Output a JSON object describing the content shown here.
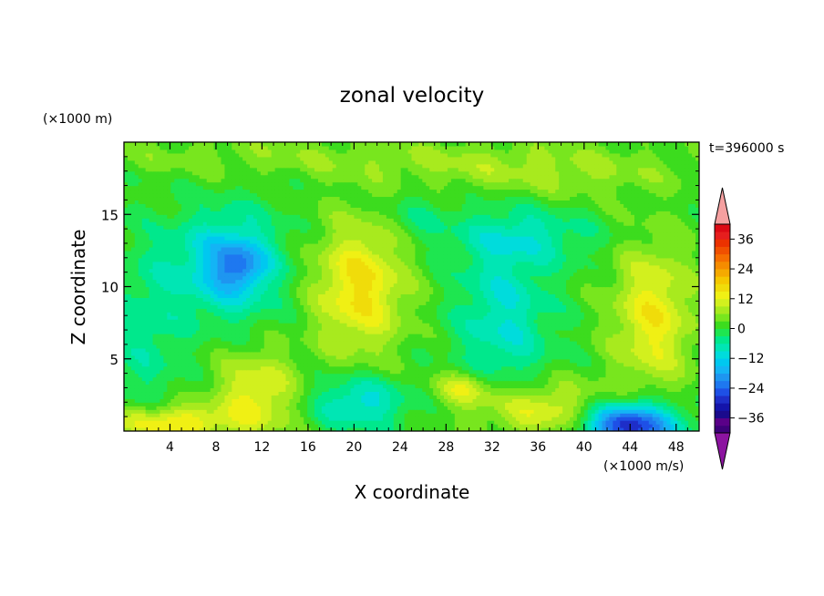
{
  "chart_data": {
    "type": "heatmap",
    "title": "zonal velocity",
    "time_label": "t=396000 s",
    "xlabel": "X coordinate",
    "ylabel": "Z coordinate",
    "x_unit": "(×1000 m/s)",
    "y_unit": "(×1000 m)",
    "xlim": [
      0,
      50
    ],
    "ylim": [
      0,
      20
    ],
    "x_ticks": [
      4,
      8,
      12,
      16,
      20,
      24,
      28,
      32,
      36,
      40,
      44,
      48
    ],
    "y_ticks": [
      5,
      10,
      15
    ],
    "colorbar": {
      "ticks": [
        36,
        24,
        12,
        0,
        -12,
        -24,
        -36
      ],
      "levels": [
        -42,
        -39,
        -36,
        -33,
        -30,
        -27,
        -24,
        -21,
        -18,
        -15,
        -12,
        -9,
        -6,
        -3,
        0,
        3,
        6,
        9,
        12,
        15,
        18,
        21,
        24,
        27,
        30,
        33,
        36,
        39,
        42
      ],
      "colors": [
        "#3d007a",
        "#5a0088",
        "#1a0a8c",
        "#1414aa",
        "#1e2ec8",
        "#1e50e6",
        "#1e78f0",
        "#1e96f0",
        "#14b4f5",
        "#00c8f0",
        "#00dcdc",
        "#00e6b4",
        "#00e88c",
        "#1ee650",
        "#3cdc1e",
        "#78e61e",
        "#a8ea1e",
        "#d2f01e",
        "#f0f014",
        "#f0dc0a",
        "#f5c800",
        "#f5aa00",
        "#f58c00",
        "#f56e00",
        "#f05000",
        "#eb3200",
        "#e61e1e",
        "#dc0a14"
      ],
      "under_color": "#8c14a0",
      "over_color": "#f5a0a0"
    },
    "features": [
      {
        "x": 14,
        "z": 19,
        "sx": 20,
        "sz": 1.4,
        "value": 4
      },
      {
        "x": 36,
        "z": 18,
        "sx": 12,
        "sz": 1.8,
        "value": 6
      },
      {
        "x": 9,
        "z": 11.5,
        "sx": 4.5,
        "sz": 3.5,
        "value": -16
      },
      {
        "x": 10,
        "z": 11.5,
        "sx": 2,
        "sz": 1.5,
        "value": -10
      },
      {
        "x": 35,
        "z": 13.5,
        "sx": 6,
        "sz": 1.8,
        "value": -7
      },
      {
        "x": 33,
        "z": 8,
        "sx": 4,
        "sz": 6,
        "value": -10
      },
      {
        "x": 20.5,
        "z": 10,
        "sx": 4,
        "sz": 4.5,
        "value": 15
      },
      {
        "x": 46,
        "z": 8,
        "sx": 3.5,
        "sz": 5,
        "value": 13
      },
      {
        "x": 11.5,
        "z": 2.5,
        "sx": 3.5,
        "sz": 3,
        "value": 12
      },
      {
        "x": 4,
        "z": 0.6,
        "sx": 5,
        "sz": 1.2,
        "value": 15
      },
      {
        "x": 36,
        "z": 1.5,
        "sx": 6,
        "sz": 2,
        "value": 12
      },
      {
        "x": 29.5,
        "z": 3,
        "sx": 2.5,
        "sz": 1.2,
        "value": 10
      },
      {
        "x": 20.5,
        "z": 2,
        "sx": 4,
        "sz": 1.8,
        "value": -12
      },
      {
        "x": 44,
        "z": 0.4,
        "sx": 4,
        "sz": 1.6,
        "value": -32
      },
      {
        "x": 2,
        "z": 7,
        "sx": 3,
        "sz": 6,
        "value": -6
      },
      {
        "x": 25.5,
        "z": 15,
        "sx": 3,
        "sz": 2,
        "value": -4
      }
    ]
  }
}
